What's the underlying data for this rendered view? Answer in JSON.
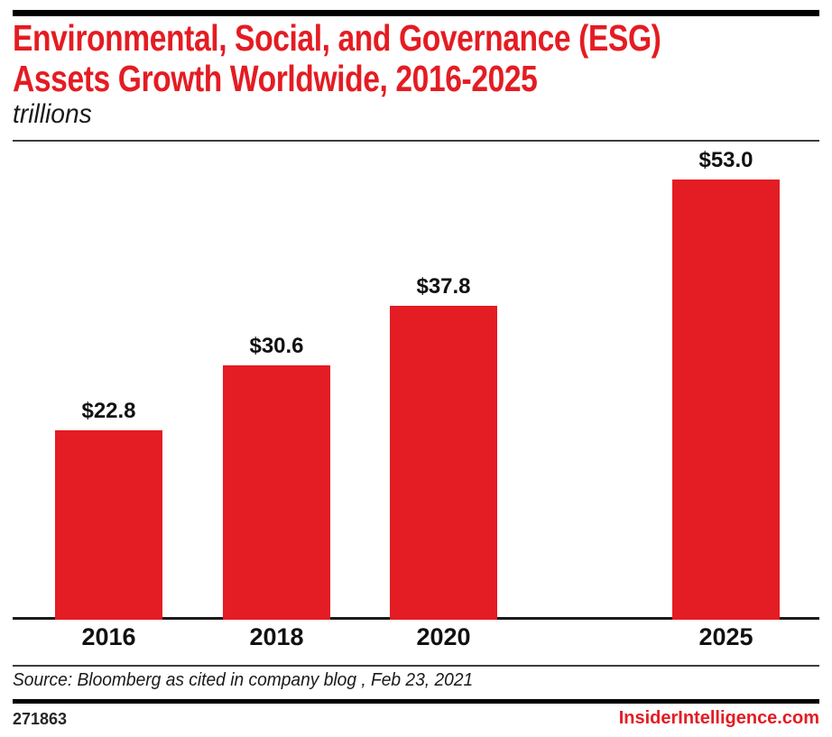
{
  "brand": {
    "accent_red": "#e41c23",
    "rule_black": "#1a1a1a"
  },
  "header": {
    "title_line1": "Environmental, Social, and Governance (ESG)",
    "title_line2": "Assets Growth Worldwide, 2016-2025",
    "subtitle": "trillions"
  },
  "chart_data": {
    "type": "bar",
    "title": "Environmental, Social, and Governance (ESG) Assets Growth Worldwide, 2016-2025",
    "unit_label": "trillions",
    "categories": [
      "2016",
      "2018",
      "2020",
      "2025"
    ],
    "values": [
      22.8,
      30.6,
      37.8,
      53.0
    ],
    "value_labels": [
      "$22.8",
      "$30.6",
      "$37.8",
      "$53.0"
    ],
    "ylim": [
      0,
      57.6
    ],
    "bar_color": "#e41c23",
    "grid": false,
    "legend": false
  },
  "footer": {
    "source": "Source: Bloomberg as cited in company blog , Feb 23, 2021",
    "chart_id": "271863",
    "brand_site": "InsiderIntelligence.com"
  }
}
